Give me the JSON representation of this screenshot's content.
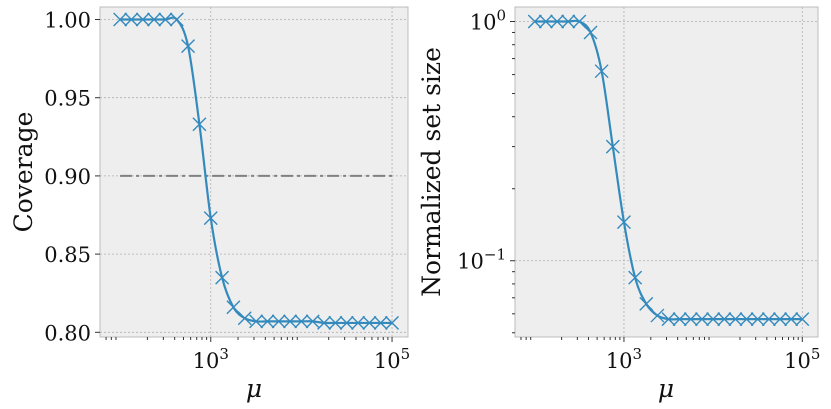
{
  "colors": {
    "series": "#348abd",
    "reference": "#808080",
    "background": "#eeeeee"
  },
  "chart_data": [
    {
      "type": "line",
      "xlabel": "μ",
      "ylabel": "Coverage",
      "xscale": "log",
      "xlim": [
        60,
        150000
      ],
      "ylim": [
        0.797,
        1.008
      ],
      "grid": true,
      "xticks": [
        {
          "value": 1000,
          "base": "10",
          "exp": "3"
        },
        {
          "value": 100000,
          "base": "10",
          "exp": "5"
        }
      ],
      "yticks": [
        {
          "value": 0.8,
          "label": "0.80"
        },
        {
          "value": 0.85,
          "label": "0.85"
        },
        {
          "value": 0.9,
          "label": "0.90"
        },
        {
          "value": 0.95,
          "label": "0.95"
        },
        {
          "value": 1.0,
          "label": "1.00"
        }
      ],
      "reference_line": {
        "y": 0.9,
        "x_range": [
          100,
          100000
        ],
        "style": "dash-dot"
      },
      "series": [
        {
          "marker": "x",
          "x": [
            100,
            133,
            178,
            237,
            316,
            422,
            562,
            750,
            1000,
            1334,
            1778,
            2371,
            3162,
            4217,
            5623,
            7499,
            10000,
            13335,
            17783,
            23714,
            31623,
            42170,
            56234,
            74989,
            100000
          ],
          "y": [
            1.0,
            1.0,
            1.0,
            1.0,
            1.0,
            1.0,
            0.983,
            0.933,
            0.873,
            0.835,
            0.816,
            0.809,
            0.807,
            0.807,
            0.807,
            0.807,
            0.807,
            0.807,
            0.806,
            0.806,
            0.806,
            0.806,
            0.806,
            0.806,
            0.806
          ]
        }
      ]
    },
    {
      "type": "line",
      "xlabel": "μ",
      "ylabel": "Normalized set size",
      "xscale": "log",
      "yscale": "log",
      "xlim": [
        60,
        150000
      ],
      "ylim": [
        0.048,
        1.15
      ],
      "grid": true,
      "xticks": [
        {
          "value": 1000,
          "base": "10",
          "exp": "3"
        },
        {
          "value": 100000,
          "base": "10",
          "exp": "5"
        }
      ],
      "yticks": [
        {
          "value": 0.1,
          "base": "10",
          "exp": "−1"
        },
        {
          "value": 1,
          "base": "10",
          "exp": "0"
        }
      ],
      "series": [
        {
          "marker": "x",
          "x": [
            100,
            133,
            178,
            237,
            316,
            422,
            562,
            750,
            1000,
            1334,
            1778,
            2371,
            3162,
            4217,
            5623,
            7499,
            10000,
            13335,
            17783,
            23714,
            31623,
            42170,
            56234,
            74989,
            100000
          ],
          "y": [
            1.0,
            1.0,
            1.0,
            1.0,
            1.0,
            0.9,
            0.62,
            0.3,
            0.145,
            0.085,
            0.066,
            0.059,
            0.057,
            0.057,
            0.057,
            0.057,
            0.057,
            0.057,
            0.057,
            0.057,
            0.057,
            0.057,
            0.057,
            0.057,
            0.057
          ]
        }
      ]
    }
  ]
}
